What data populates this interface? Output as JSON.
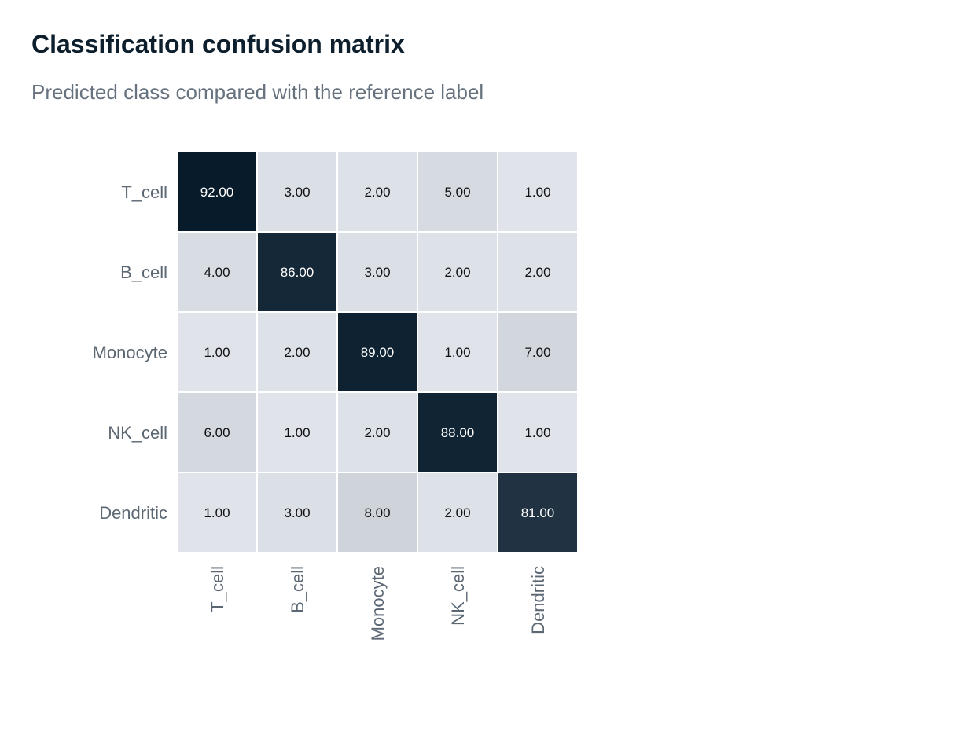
{
  "title": "Classification confusion matrix",
  "subtitle": "Predicted class compared with the reference label",
  "chart_data": {
    "type": "heatmap",
    "rows": [
      "T_cell",
      "B_cell",
      "Monocyte",
      "NK_cell",
      "Dendritic"
    ],
    "columns": [
      "T_cell",
      "B_cell",
      "Monocyte",
      "NK_cell",
      "Dendritic"
    ],
    "values": [
      [
        92,
        3,
        2,
        5,
        1
      ],
      [
        4,
        86,
        3,
        2,
        2
      ],
      [
        1,
        2,
        89,
        1,
        7
      ],
      [
        6,
        1,
        2,
        88,
        1
      ],
      [
        1,
        3,
        8,
        2,
        81
      ]
    ],
    "value_format": "0.00",
    "color_scale": {
      "low": "#e2e6ec",
      "high": "#071b2b",
      "min": 0,
      "max": 92
    },
    "text_colors": {
      "light": "#ffffff",
      "dark": "#111111"
    },
    "grid": false,
    "legend": "none"
  }
}
